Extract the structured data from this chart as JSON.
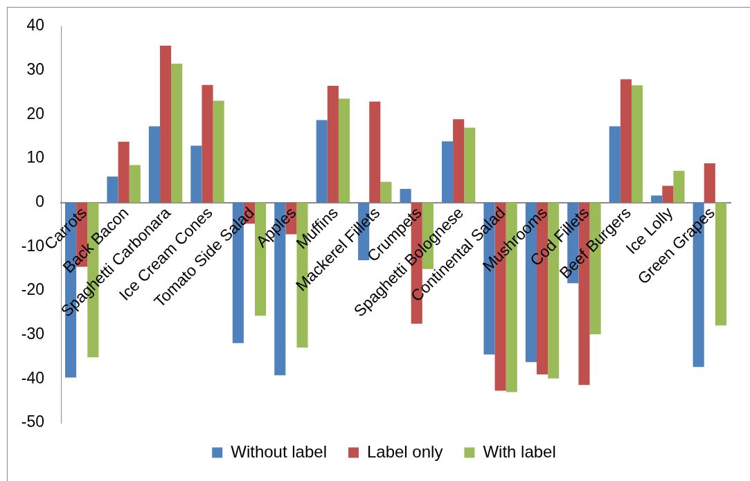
{
  "chart_data": {
    "type": "bar",
    "categories": [
      "Carrots",
      "Back Bacon",
      "Spaghetti Carbonara",
      "Ice Cream Cones",
      "Tomato Side Salad",
      "Apples",
      "Muffins",
      "Mackerel Fillets",
      "Crumpets",
      "Spaghetti Bolognese",
      "Continental Salad",
      "Mushrooms",
      "Cod Fillets",
      "Beef Burgers",
      "Ice Lolly",
      "Green Grapes"
    ],
    "series": [
      {
        "name": "Without label",
        "color": "#4f81bd",
        "values": [
          -39.7,
          5.9,
          17.3,
          12.9,
          -31.9,
          -39.2,
          18.7,
          -13.1,
          3.1,
          13.9,
          -34.5,
          -36.2,
          -18.3,
          17.3,
          1.6,
          -37.3
        ]
      },
      {
        "name": "Label only",
        "color": "#c0504d",
        "values": [
          -14.6,
          13.8,
          35.6,
          26.7,
          -4.8,
          -7.2,
          26.5,
          22.9,
          -27.5,
          18.9,
          -42.7,
          -39.0,
          -41.4,
          28.0,
          3.8,
          8.9
        ]
      },
      {
        "name": "With label",
        "color": "#9bbb59",
        "values": [
          -35.1,
          8.5,
          31.5,
          23.1,
          -25.7,
          -32.9,
          23.6,
          4.7,
          -15.1,
          17.0,
          -43.0,
          -39.9,
          -29.9,
          26.6,
          7.2,
          -27.9
        ]
      }
    ],
    "ylim": [
      -50,
      40
    ],
    "yticks": [
      -50,
      -40,
      -30,
      -20,
      -10,
      0,
      10,
      20,
      30,
      40
    ],
    "grid": false,
    "legend": "bottom"
  }
}
